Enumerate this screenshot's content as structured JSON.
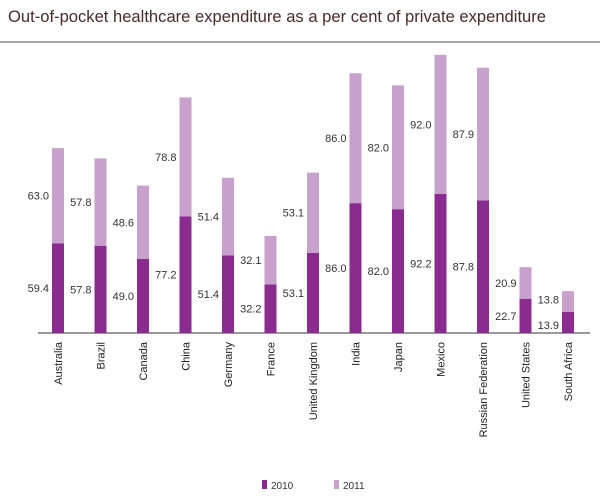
{
  "chart_data": {
    "type": "bar",
    "stacked": true,
    "title": "Out-of-pocket healthcare expenditure as a per cent of private expenditure",
    "categories": [
      "Australia",
      "Brazil",
      "Canada",
      "China",
      "Germany",
      "France",
      "United Kingdom",
      "India",
      "Japan",
      "Mexico",
      "Russian Federation",
      "United States",
      "South Africa"
    ],
    "series": [
      {
        "name": "2010",
        "color": "#8a2b8f",
        "values": [
          59.4,
          57.8,
          49.0,
          77.2,
          51.4,
          32.2,
          53.1,
          86.0,
          82.0,
          92.2,
          87.8,
          22.7,
          13.9
        ]
      },
      {
        "name": "2011",
        "color": "#c8a0cc",
        "values": [
          63.0,
          57.8,
          48.6,
          78.8,
          51.4,
          32.1,
          53.1,
          86.0,
          82.0,
          92.0,
          87.9,
          20.9,
          13.8
        ]
      }
    ],
    "legend_position": "bottom",
    "grid": false
  }
}
